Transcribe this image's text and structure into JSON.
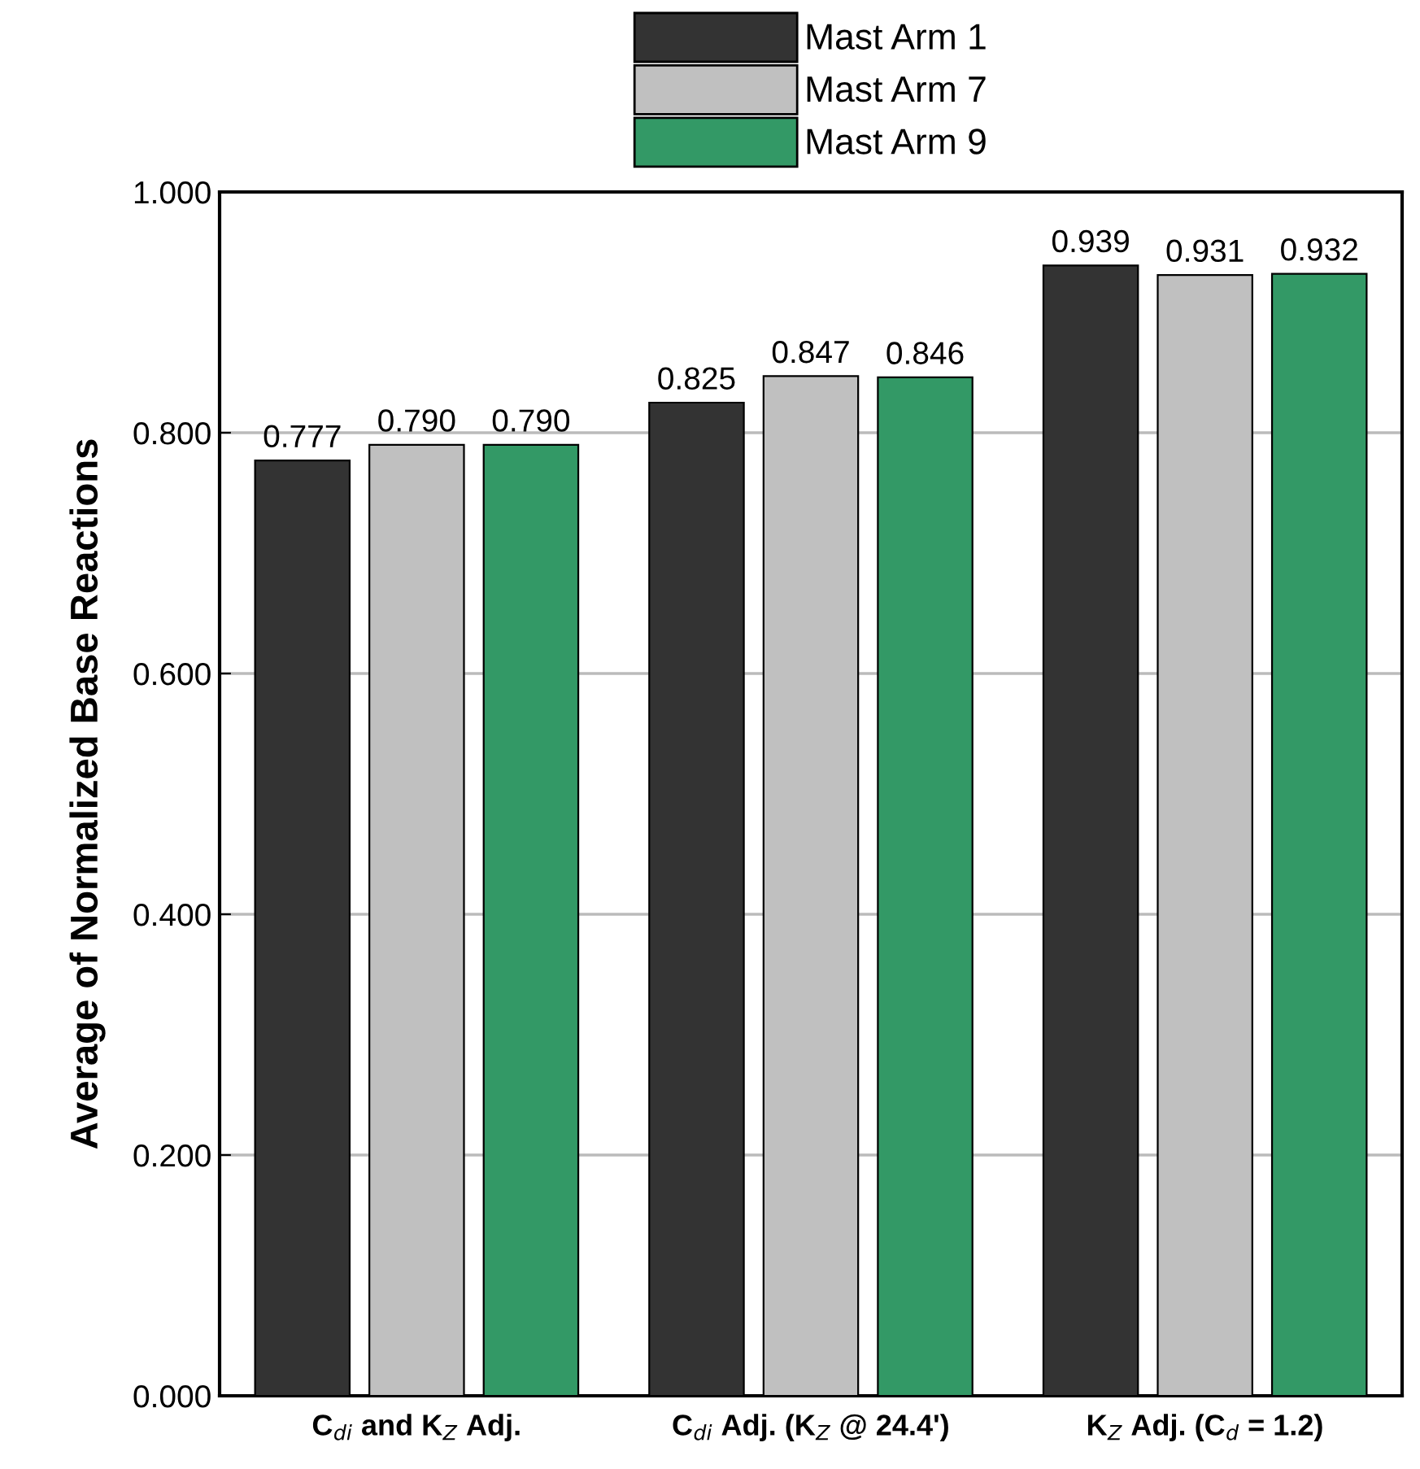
{
  "chart_data": {
    "type": "bar",
    "ylabel": "Average of Normalized Base Reactions",
    "categories": [
      "C$_{di}$ and K$_{Z}$ Adj.",
      "C$_{di}$ Adj. (K$_{Z}$ @ 24.4')",
      "K$_{Z}$ Adj. (C$_{d}$ = 1.2)"
    ],
    "series": [
      {
        "name": "Mast Arm 1",
        "color": "#333333",
        "values": [
          0.777,
          0.825,
          0.939
        ],
        "value_labels": [
          "0.777",
          "0.825",
          "0.939"
        ]
      },
      {
        "name": "Mast Arm 7",
        "color": "#c0c0c0",
        "values": [
          0.79,
          0.847,
          0.931
        ],
        "value_labels": [
          "0.790",
          "0.847",
          "0.931"
        ]
      },
      {
        "name": "Mast Arm 9",
        "color": "#339966",
        "values": [
          0.79,
          0.846,
          0.932
        ],
        "value_labels": [
          "0.790",
          "0.846",
          "0.932"
        ]
      }
    ],
    "ylim": [
      0,
      1
    ],
    "yticks": [
      {
        "value": 0,
        "label": "0.000"
      },
      {
        "value": 0.2,
        "label": "0.200"
      },
      {
        "value": 0.4,
        "label": "0.400"
      },
      {
        "value": 0.6,
        "label": "0.600"
      },
      {
        "value": 0.8,
        "label": "0.800"
      },
      {
        "value": 1,
        "label": "1.000"
      }
    ],
    "grid": "y",
    "legend": "top"
  }
}
